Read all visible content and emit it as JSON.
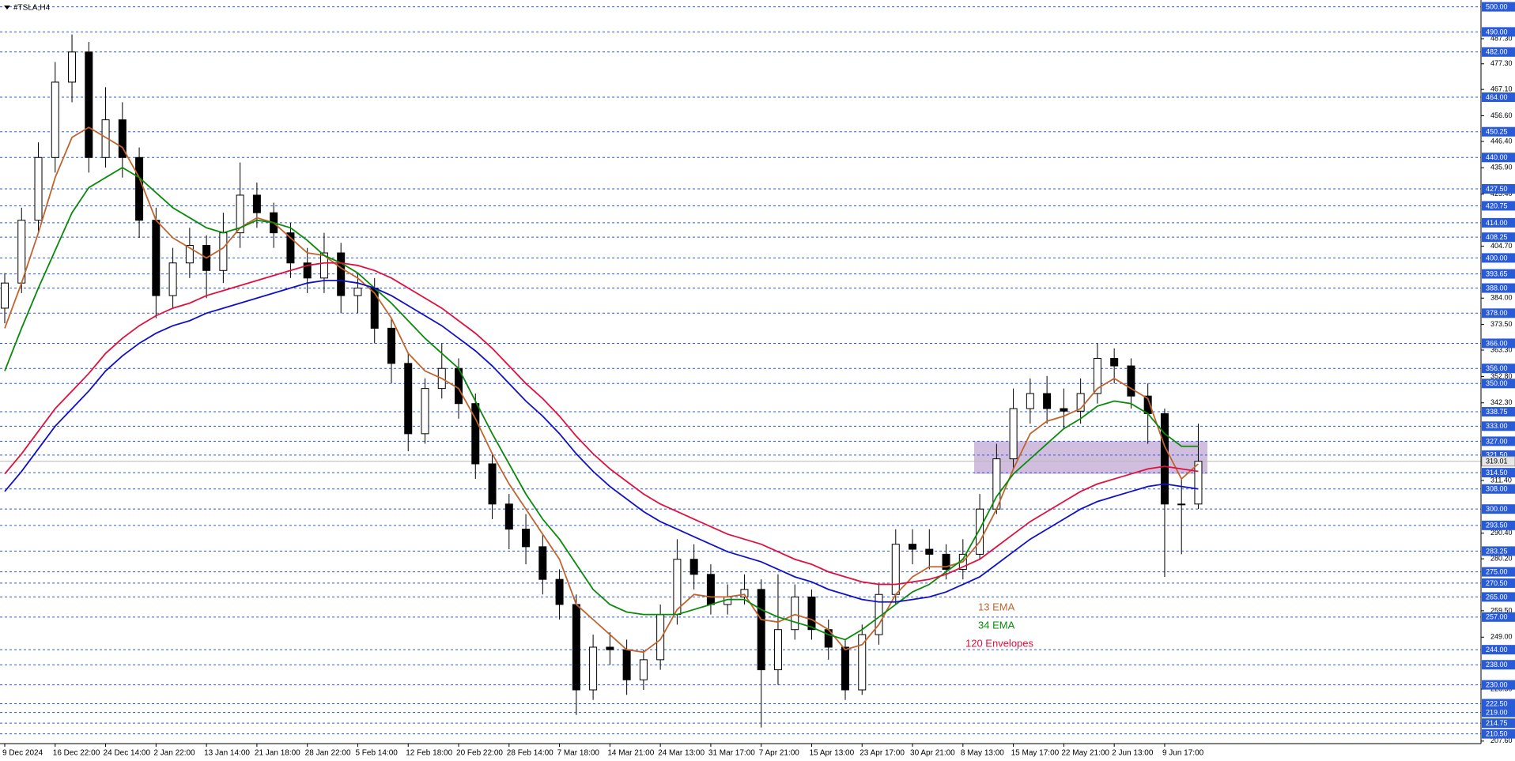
{
  "chart_data": {
    "type": "candlestick",
    "title": "#TSLA,H4",
    "categories": [
      "9 Dec 2024",
      null,
      null,
      "16 Dec 22:00",
      null,
      null,
      "24 Dec 14:00",
      null,
      null,
      "2 Jan 22:00",
      null,
      null,
      "13 Jan 14:00",
      null,
      null,
      "21 Jan 18:00",
      null,
      null,
      "28 Jan 22:00",
      null,
      null,
      "5 Feb 14:00",
      null,
      null,
      "12 Feb 18:00",
      null,
      null,
      "20 Feb 22:00",
      null,
      null,
      "28 Feb 14:00",
      null,
      null,
      "7 Mar 18:00",
      null,
      null,
      "14 Mar 21:00",
      null,
      null,
      "24 Mar 13:00",
      null,
      null,
      "31 Mar 17:00",
      null,
      null,
      "7 Apr 21:00",
      null,
      null,
      "15 Apr 13:00",
      null,
      null,
      "23 Apr 17:00",
      null,
      null,
      "30 Apr 21:00",
      null,
      null,
      "8 May 13:00",
      null,
      null,
      "15 May 17:00",
      null,
      null,
      "22 May 21:00",
      null,
      null,
      "2 Jun 13:00",
      null,
      null,
      "9 Jun 17:00",
      null,
      null
    ],
    "open": [
      380,
      390,
      415,
      440,
      470,
      482,
      440,
      455,
      440,
      415,
      385,
      398,
      405,
      395,
      410,
      425,
      418,
      410,
      398,
      392,
      402,
      385,
      388,
      372,
      358,
      330,
      348,
      356,
      342,
      318,
      302,
      292,
      285,
      272,
      262,
      228,
      245,
      244,
      232,
      240,
      258,
      280,
      274,
      262,
      265,
      268,
      236,
      252,
      265,
      252,
      245,
      228,
      250,
      266,
      286,
      284,
      282,
      276,
      282,
      300,
      320,
      340,
      346,
      340,
      339,
      346,
      360,
      357,
      345,
      338,
      302,
      302
    ],
    "high": [
      394,
      420,
      446,
      478,
      489,
      486,
      468,
      462,
      444,
      420,
      404,
      412,
      409,
      418,
      438,
      430,
      422,
      414,
      404,
      410,
      406,
      394,
      392,
      376,
      362,
      352,
      366,
      360,
      346,
      322,
      306,
      298,
      290,
      276,
      266,
      250,
      251,
      248,
      244,
      262,
      288,
      286,
      278,
      270,
      274,
      272,
      274,
      270,
      268,
      256,
      248,
      254,
      270,
      292,
      292,
      292,
      286,
      288,
      306,
      326,
      348,
      352,
      353,
      348,
      352,
      366,
      364,
      360,
      350,
      340,
      312,
      334
    ],
    "low": [
      374,
      386,
      410,
      434,
      462,
      434,
      436,
      432,
      408,
      376,
      380,
      392,
      384,
      390,
      404,
      412,
      404,
      392,
      386,
      386,
      378,
      378,
      366,
      350,
      323,
      326,
      344,
      336,
      312,
      296,
      284,
      278,
      266,
      256,
      218,
      224,
      238,
      226,
      228,
      236,
      254,
      268,
      258,
      258,
      262,
      213,
      230,
      248,
      248,
      240,
      224,
      226,
      246,
      262,
      278,
      276,
      272,
      272,
      280,
      298,
      316,
      334,
      334,
      332,
      334,
      342,
      350,
      340,
      326,
      273,
      282,
      300
    ],
    "close": [
      390,
      415,
      440,
      470,
      482,
      440,
      455,
      440,
      415,
      385,
      398,
      405,
      395,
      410,
      425,
      418,
      410,
      398,
      392,
      402,
      385,
      388,
      372,
      358,
      330,
      348,
      356,
      342,
      318,
      302,
      292,
      285,
      272,
      262,
      228,
      245,
      244,
      232,
      240,
      258,
      280,
      274,
      262,
      265,
      268,
      236,
      252,
      265,
      252,
      245,
      228,
      250,
      266,
      286,
      284,
      282,
      276,
      282,
      300,
      320,
      340,
      346,
      340,
      339,
      346,
      360,
      357,
      345,
      338,
      302,
      302,
      319
    ],
    "up_color": "#ffffff",
    "down_color": "#000000",
    "series": [
      {
        "name": "13 EMA",
        "color": "#c0642e",
        "values": [
          372,
          390,
          410,
          432,
          448,
          452,
          448,
          444,
          432,
          415,
          408,
          404,
          400,
          404,
          412,
          416,
          414,
          408,
          402,
          401,
          396,
          392,
          386,
          376,
          362,
          355,
          352,
          348,
          336,
          322,
          310,
          300,
          290,
          280,
          262,
          256,
          250,
          244,
          243,
          248,
          260,
          266,
          265,
          265,
          266,
          256,
          255,
          258,
          256,
          252,
          244,
          246,
          254,
          266,
          273,
          277,
          277,
          279,
          287,
          300,
          316,
          330,
          335,
          337,
          340,
          348,
          352,
          348,
          344,
          325,
          312,
          318
        ]
      },
      {
        "name": "34 EMA",
        "color": "#0a8a0a",
        "values": [
          355,
          372,
          388,
          403,
          418,
          428,
          432,
          436,
          432,
          426,
          420,
          416,
          412,
          410,
          412,
          415,
          414,
          412,
          407,
          401,
          398,
          394,
          388,
          382,
          375,
          368,
          362,
          356,
          343,
          330,
          318,
          306,
          296,
          288,
          278,
          268,
          262,
          259,
          258,
          258,
          258,
          260,
          262,
          264,
          264,
          260,
          257,
          255,
          253,
          250,
          248,
          252,
          257,
          262,
          267,
          270,
          275,
          280,
          292,
          305,
          314,
          320,
          326,
          332,
          336,
          341,
          343,
          342,
          338,
          330,
          325,
          325
        ]
      },
      {
        "name": "120 Envelopes",
        "colors": [
          "#e0103c",
          "#1010c8"
        ],
        "upper": [
          314,
          322,
          331,
          340,
          347,
          354,
          362,
          368,
          373,
          377,
          380,
          382,
          385,
          387,
          389,
          391,
          393,
          395,
          397,
          398,
          398,
          397,
          395,
          392,
          388,
          384,
          380,
          375,
          370,
          364,
          357,
          350,
          344,
          337,
          329,
          322,
          316,
          311,
          306,
          302,
          299,
          296,
          293,
          290,
          288,
          286,
          283,
          280,
          278,
          275,
          273,
          271,
          270,
          270,
          271,
          272,
          274,
          277,
          280,
          285,
          290,
          295,
          299,
          303,
          307,
          310,
          312,
          314,
          316,
          317,
          316,
          315
        ],
        "lower": [
          307,
          315,
          324,
          333,
          340,
          347,
          355,
          361,
          366,
          370,
          373,
          375,
          378,
          380,
          382,
          384,
          386,
          388,
          390,
          391,
          391,
          390,
          388,
          385,
          381,
          377,
          373,
          368,
          363,
          357,
          350,
          343,
          337,
          330,
          322,
          315,
          309,
          304,
          299,
          295,
          292,
          289,
          286,
          283,
          281,
          279,
          276,
          273,
          271,
          268,
          266,
          264,
          263,
          263,
          264,
          265,
          267,
          270,
          273,
          278,
          283,
          288,
          292,
          296,
          300,
          303,
          305,
          307,
          309,
          310,
          309,
          308
        ]
      }
    ],
    "ylim": [
      206.6,
      501.45
    ],
    "yticks": [
      {
        "value": 487.3,
        "label": "487.30"
      },
      {
        "value": 477.3,
        "label": "477.30"
      },
      {
        "value": 467.1,
        "label": "467.10"
      },
      {
        "value": 456.6,
        "label": "456.60"
      },
      {
        "value": 446.4,
        "label": "446.40"
      },
      {
        "value": 435.9,
        "label": "435.90"
      },
      {
        "value": 425.4,
        "label": "425.40"
      },
      {
        "value": 404.7,
        "label": "404.70"
      },
      {
        "value": 384,
        "label": "384.00"
      },
      {
        "value": 373.5,
        "label": "373.50"
      },
      {
        "value": 363.3,
        "label": "363.30"
      },
      {
        "value": 352.8,
        "label": "352.80"
      },
      {
        "value": 342.3,
        "label": "342.30"
      },
      {
        "value": 311.4,
        "label": "311.40"
      },
      {
        "value": 290.4,
        "label": "290.40"
      },
      {
        "value": 280.2,
        "label": "280.20"
      },
      {
        "value": 259.5,
        "label": "259.50"
      },
      {
        "value": 249,
        "label": "249.00"
      },
      {
        "value": 228.3,
        "label": "228.30"
      },
      {
        "value": 207.6,
        "label": "207.60"
      }
    ],
    "levels": [
      {
        "value": 500,
        "label": "500.00"
      },
      {
        "value": 490,
        "label": "490.00"
      },
      {
        "value": 482,
        "label": "482.00"
      },
      {
        "value": 464,
        "label": "464.00"
      },
      {
        "value": 450.25,
        "label": "450.25"
      },
      {
        "value": 440,
        "label": "440.00"
      },
      {
        "value": 427.5,
        "label": "427.50"
      },
      {
        "value": 420.75,
        "label": "420.75"
      },
      {
        "value": 414,
        "label": "414.00"
      },
      {
        "value": 408.25,
        "label": "408.25"
      },
      {
        "value": 400,
        "label": "400.00"
      },
      {
        "value": 393.65,
        "label": "393.65"
      },
      {
        "value": 388,
        "label": "388.00"
      },
      {
        "value": 378,
        "label": "378.00"
      },
      {
        "value": 366,
        "label": "366.00"
      },
      {
        "value": 356,
        "label": "356.00"
      },
      {
        "value": 350,
        "label": "350.00"
      },
      {
        "value": 338.75,
        "label": "338.75"
      },
      {
        "value": 333,
        "label": "333.00"
      },
      {
        "value": 327,
        "label": "327.00"
      },
      {
        "value": 321.5,
        "label": "321.50"
      },
      {
        "value": 314.5,
        "label": "314.50"
      },
      {
        "value": 308,
        "label": "308.00"
      },
      {
        "value": 300,
        "label": "300.00"
      },
      {
        "value": 293.5,
        "label": "293.50"
      },
      {
        "value": 283.25,
        "label": "283.25"
      },
      {
        "value": 275,
        "label": "275.00"
      },
      {
        "value": 270.5,
        "label": "270.50"
      },
      {
        "value": 265,
        "label": "265.00"
      },
      {
        "value": 257,
        "label": "257.00"
      },
      {
        "value": 244,
        "label": "244.00"
      },
      {
        "value": 238,
        "label": "238.00"
      },
      {
        "value": 230,
        "label": "230.00"
      },
      {
        "value": 222.5,
        "label": "222.50"
      },
      {
        "value": 219,
        "label": "219.00"
      },
      {
        "value": 214.75,
        "label": "214.75"
      },
      {
        "value": 210.5,
        "label": "210.50"
      }
    ],
    "level_color": "#2a5bd7",
    "current_price": {
      "value": 319.01,
      "label": "319.01"
    },
    "zone": {
      "low": 314,
      "high": 327,
      "color": "#c9b3d9"
    }
  }
}
